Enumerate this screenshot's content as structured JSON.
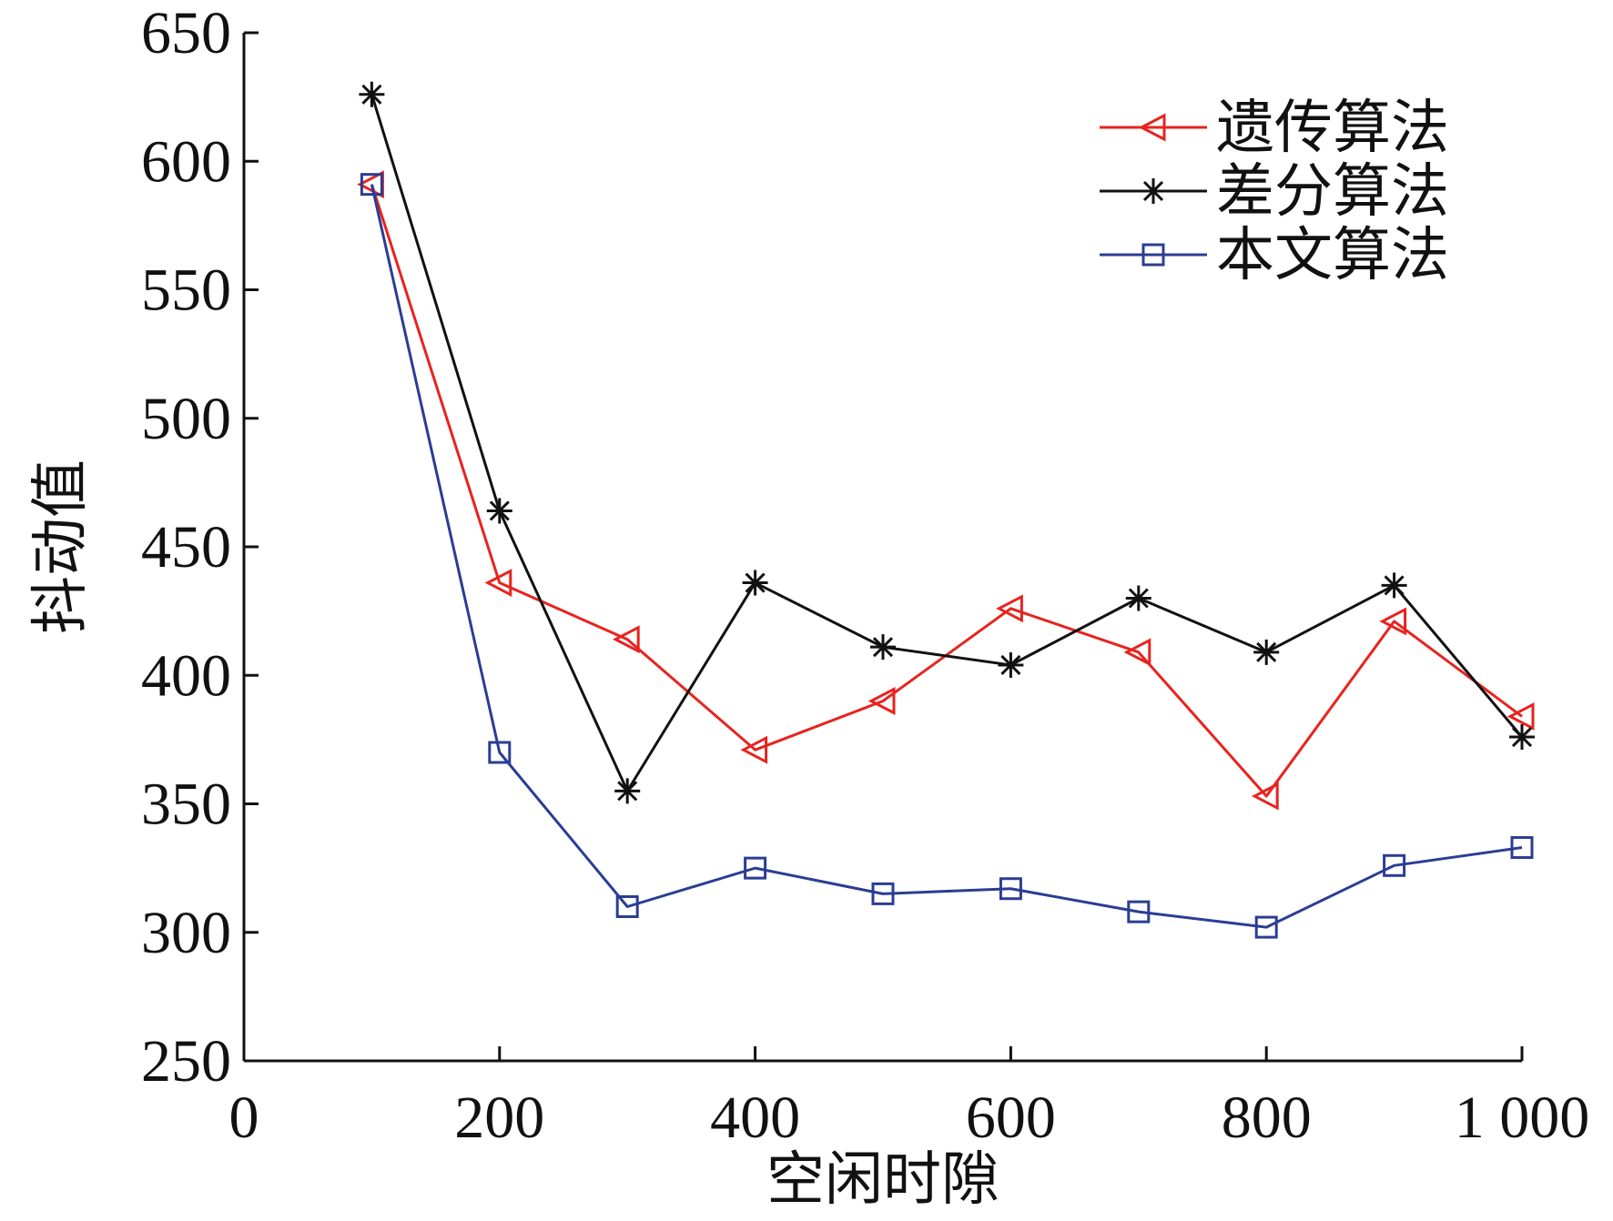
{
  "chart_data": {
    "type": "line",
    "title": "",
    "xlabel": "空闲时隙",
    "ylabel": "抖动值",
    "xlim": [
      0,
      1000
    ],
    "ylim": [
      250,
      650
    ],
    "xticks": [
      0,
      200,
      400,
      600,
      800,
      1000
    ],
    "xtick_labels": [
      "0",
      "200",
      "400",
      "600",
      "800",
      "1 000"
    ],
    "yticks": [
      250,
      300,
      350,
      400,
      450,
      500,
      550,
      600,
      650
    ],
    "ytick_labels": [
      "250",
      "300",
      "350",
      "400",
      "450",
      "500",
      "550",
      "600",
      "650"
    ],
    "grid": false,
    "legend_position": "top-right",
    "x": [
      100,
      200,
      300,
      400,
      500,
      600,
      700,
      800,
      900,
      1000
    ],
    "series": [
      {
        "name": "遗传算法",
        "color": "#e8231f",
        "marker": "triangle-left",
        "values": [
          591,
          436,
          414,
          371,
          390,
          426,
          409,
          353,
          421,
          384
        ]
      },
      {
        "name": "差分算法",
        "color": "#111111",
        "marker": "asterisk",
        "values": [
          626,
          464,
          355,
          436,
          411,
          404,
          430,
          409,
          435,
          376
        ]
      },
      {
        "name": "本文算法",
        "color": "#2b3d93",
        "marker": "square",
        "values": [
          591,
          370,
          310,
          325,
          315,
          317,
          308,
          302,
          326,
          333
        ]
      }
    ]
  }
}
